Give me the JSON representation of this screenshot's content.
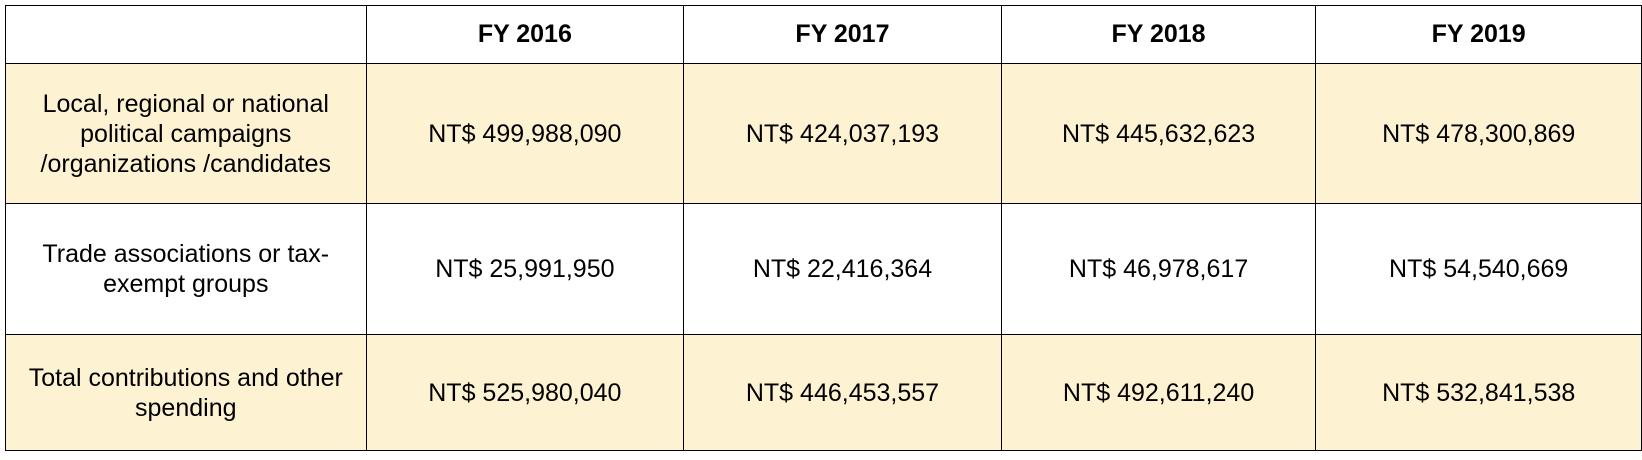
{
  "table": {
    "headers": [
      "",
      "FY 2016",
      "FY 2017",
      "FY 2018",
      "FY 2019"
    ],
    "rows": [
      {
        "label": "Local, regional or national political campaigns /organizations /candidates",
        "values": [
          "NT$ 499,988,090",
          "NT$ 424,037,193",
          "NT$ 445,632,623",
          "NT$ 478,300,869"
        ]
      },
      {
        "label": "Trade associations or tax-exempt groups",
        "values": [
          "NT$ 25,991,950",
          "NT$ 22,416,364",
          "NT$ 46,978,617",
          "NT$ 54,540,669"
        ]
      },
      {
        "label": "Total contributions and other spending",
        "values": [
          "NT$ 525,980,040",
          "NT$ 446,453,557",
          "NT$ 492,611,240",
          "NT$ 532,841,538"
        ]
      }
    ]
  },
  "colors": {
    "shaded_row": "#fdf2d2",
    "plain_row": "#ffffff",
    "border": "#000000"
  }
}
